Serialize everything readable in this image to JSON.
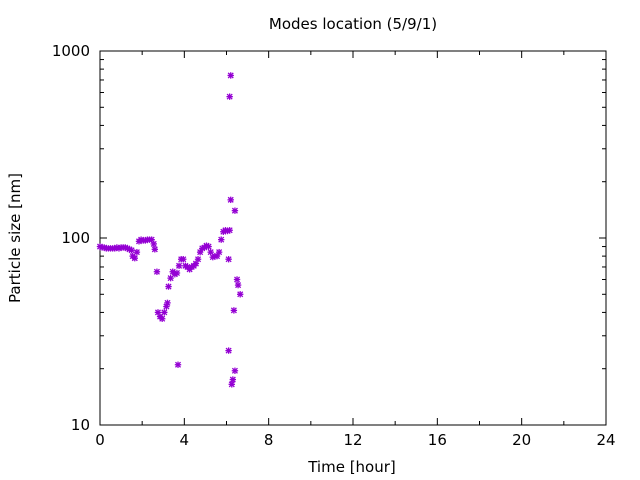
{
  "chart_data": {
    "type": "scatter",
    "title": "Modes location (5/9/1)",
    "xlabel": "Time [hour]",
    "ylabel": "Particle size [nm]",
    "xlim": [
      0,
      24
    ],
    "ylim": [
      10,
      1000
    ],
    "yscale": "log",
    "grid": false,
    "xticks": [
      0,
      4,
      8,
      12,
      16,
      20,
      24
    ],
    "yticks": [
      10,
      100,
      1000
    ],
    "color": "#9400d3",
    "points": [
      [
        0.0,
        90
      ],
      [
        0.1,
        89
      ],
      [
        0.2,
        89
      ],
      [
        0.3,
        88
      ],
      [
        0.4,
        88
      ],
      [
        0.5,
        88
      ],
      [
        0.6,
        88
      ],
      [
        0.7,
        88
      ],
      [
        0.8,
        89
      ],
      [
        0.9,
        88
      ],
      [
        1.0,
        89
      ],
      [
        1.1,
        89
      ],
      [
        1.2,
        89
      ],
      [
        1.3,
        88
      ],
      [
        1.4,
        87
      ],
      [
        1.5,
        86
      ],
      [
        1.55,
        80
      ],
      [
        1.65,
        78
      ],
      [
        1.75,
        84
      ],
      [
        1.85,
        96
      ],
      [
        1.95,
        98
      ],
      [
        2.05,
        97
      ],
      [
        2.15,
        97
      ],
      [
        2.25,
        98
      ],
      [
        2.35,
        98
      ],
      [
        2.45,
        98
      ],
      [
        2.55,
        93
      ],
      [
        2.6,
        87
      ],
      [
        2.7,
        66
      ],
      [
        2.75,
        40
      ],
      [
        2.85,
        38
      ],
      [
        2.95,
        37
      ],
      [
        3.05,
        40
      ],
      [
        3.15,
        43
      ],
      [
        3.2,
        45
      ],
      [
        3.25,
        55
      ],
      [
        3.35,
        61
      ],
      [
        3.45,
        66
      ],
      [
        3.55,
        64
      ],
      [
        3.65,
        65
      ],
      [
        3.75,
        71
      ],
      [
        3.85,
        77
      ],
      [
        3.95,
        77
      ],
      [
        4.05,
        71
      ],
      [
        4.15,
        70
      ],
      [
        4.25,
        68
      ],
      [
        4.35,
        70
      ],
      [
        4.45,
        71
      ],
      [
        4.55,
        73
      ],
      [
        4.65,
        77
      ],
      [
        4.75,
        84
      ],
      [
        4.85,
        88
      ],
      [
        4.95,
        89
      ],
      [
        5.05,
        91
      ],
      [
        5.15,
        90
      ],
      [
        5.25,
        84
      ],
      [
        5.35,
        79
      ],
      [
        5.45,
        80
      ],
      [
        5.55,
        80
      ],
      [
        5.65,
        84
      ],
      [
        5.75,
        98
      ],
      [
        5.85,
        108
      ],
      [
        5.95,
        110
      ],
      [
        6.05,
        109
      ],
      [
        6.1,
        77
      ],
      [
        6.15,
        110
      ],
      [
        3.7,
        21
      ],
      [
        6.1,
        25
      ],
      [
        6.15,
        570
      ],
      [
        6.2,
        740
      ],
      [
        6.2,
        160
      ],
      [
        6.25,
        16.5
      ],
      [
        6.3,
        17.5
      ],
      [
        6.4,
        19.5
      ],
      [
        6.35,
        41
      ],
      [
        6.4,
        140
      ],
      [
        6.5,
        60
      ],
      [
        6.55,
        56
      ],
      [
        6.65,
        50
      ]
    ]
  }
}
